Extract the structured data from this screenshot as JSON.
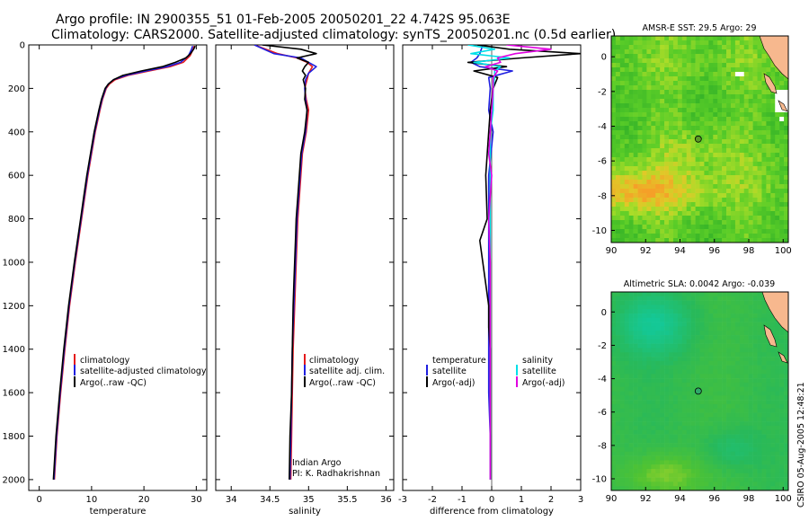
{
  "header": {
    "title_line1": "Argo profile: IN 2900355_51 01-Feb-2005 20050201_22 4.742S 95.063E",
    "title_line2": "Climatology: CARS2000. Satellite-adjusted climatology: synTS_20050201.nc (0.5d earlier)"
  },
  "colors": {
    "climatology": "#e41a1c",
    "satellite": "#1f1fe0",
    "argo": "#000000",
    "sat_salinity": "#00e0e8",
    "argo_adj_salinity": "#e000e0",
    "land": "#f7b88e",
    "gap": "#ffffff"
  },
  "chart_data": [
    {
      "type": "line",
      "id": "temperature",
      "xlabel": "temperature",
      "ylabel": "",
      "xlim": [
        -2,
        32
      ],
      "ylim": [
        2050,
        0
      ],
      "xticks": [
        0,
        10,
        20,
        30
      ],
      "yticks": [
        0,
        200,
        400,
        600,
        800,
        1000,
        1200,
        1400,
        1600,
        1800,
        2000
      ],
      "legend": [
        "climatology",
        "satellite-adjusted climatology",
        "Argo(..raw -QC)"
      ],
      "legend_position": "lower-left",
      "series": [
        {
          "name": "climatology",
          "depth": [
            5,
            20,
            50,
            80,
            100,
            120,
            140,
            160,
            180,
            200,
            250,
            300,
            400,
            500,
            600,
            700,
            800,
            1000,
            1200,
            1400,
            1600,
            1800,
            2000
          ],
          "values": [
            29.6,
            29.4,
            28.8,
            27.5,
            25,
            21,
            17,
            14.5,
            13.4,
            12.8,
            12.1,
            11.6,
            10.7,
            10.0,
            9.3,
            8.7,
            8.1,
            6.9,
            5.8,
            4.9,
            4.1,
            3.4,
            2.9
          ]
        },
        {
          "name": "satellite-adjusted climatology",
          "depth": [
            5,
            20,
            50,
            80,
            100,
            120,
            140,
            160,
            180,
            200,
            250,
            300,
            400,
            500,
            600,
            700,
            800,
            1000,
            1200,
            1400,
            1600,
            1800,
            2000
          ],
          "values": [
            29.3,
            29.1,
            28.5,
            27.0,
            24.4,
            20.4,
            16.6,
            14.2,
            13.2,
            12.7,
            12.0,
            11.5,
            10.6,
            9.9,
            9.2,
            8.6,
            8.0,
            6.8,
            5.7,
            4.8,
            4.0,
            3.3,
            2.8
          ]
        },
        {
          "name": "Argo(..raw -QC)",
          "depth": [
            5,
            20,
            40,
            60,
            80,
            100,
            120,
            140,
            160,
            180,
            200,
            250,
            300,
            400,
            500,
            600,
            700,
            800,
            1000,
            1200,
            1400,
            1600,
            1800,
            2000
          ],
          "values": [
            29.8,
            29.5,
            28.9,
            28.0,
            26.0,
            23.5,
            19.5,
            16,
            14.2,
            13.2,
            12.6,
            11.9,
            11.4,
            10.5,
            9.8,
            9.1,
            8.5,
            7.9,
            6.7,
            5.6,
            4.7,
            3.9,
            3.2,
            2.7
          ]
        }
      ]
    },
    {
      "type": "line",
      "id": "salinity",
      "xlabel": "salinity",
      "xlim": [
        33.8,
        36.1
      ],
      "ylim": [
        2050,
        0
      ],
      "xticks": [
        34,
        34.5,
        35,
        35.5,
        36
      ],
      "legend": [
        "climatology",
        "satellite adj. clim.",
        "Argo(..raw -QC)"
      ],
      "legend_position": "lower-right",
      "annotation": [
        "Indian Argo",
        "PI: K. Radhakrishnan"
      ],
      "series": [
        {
          "name": "climatology",
          "depth": [
            0,
            40,
            60,
            80,
            100,
            130,
            160,
            200,
            250,
            300,
            400,
            500,
            600,
            700,
            800,
            1000,
            1200,
            1400,
            1600,
            1800,
            2000
          ],
          "values": [
            34.3,
            34.6,
            34.85,
            34.98,
            35.05,
            35.0,
            34.98,
            34.95,
            34.97,
            35.0,
            34.97,
            34.92,
            34.9,
            34.88,
            34.86,
            34.84,
            34.82,
            34.8,
            34.79,
            34.78,
            34.77
          ]
        },
        {
          "name": "satellite adj. clim.",
          "depth": [
            0,
            40,
            60,
            80,
            100,
            130,
            160,
            200,
            250,
            300,
            400,
            500,
            600,
            700,
            800,
            1000,
            1200,
            1400,
            1600,
            1800,
            2000
          ],
          "values": [
            34.3,
            34.55,
            34.9,
            35.0,
            35.1,
            35.0,
            34.96,
            34.95,
            34.96,
            34.98,
            34.96,
            34.91,
            34.89,
            34.87,
            34.85,
            34.83,
            34.81,
            34.79,
            34.78,
            34.77,
            34.76
          ]
        },
        {
          "name": "Argo(..raw -QC)",
          "depth": [
            0,
            20,
            40,
            60,
            80,
            100,
            120,
            140,
            160,
            200,
            250,
            300,
            400,
            500,
            600,
            700,
            800,
            900,
            1000,
            1100,
            1200,
            1400,
            1600,
            1800,
            2000
          ],
          "values": [
            34.4,
            34.9,
            35.1,
            34.85,
            35.0,
            34.95,
            34.92,
            34.96,
            34.93,
            34.96,
            34.95,
            34.98,
            34.95,
            34.9,
            34.88,
            34.86,
            34.84,
            34.83,
            34.82,
            34.81,
            34.8,
            34.79,
            34.78,
            34.76,
            34.75
          ]
        }
      ]
    },
    {
      "type": "line",
      "id": "difference",
      "xlabel": "difference from climatology",
      "xlim": [
        -3,
        3
      ],
      "ylim": [
        2050,
        0
      ],
      "xticks": [
        -3,
        -2,
        -1,
        0,
        1,
        2,
        3
      ],
      "legend": [
        "temperature",
        "satellite",
        "Argo(-adj)",
        "salinity",
        "satellite",
        "Argo(-adj)"
      ],
      "legend_position": "lower-center",
      "series": [
        {
          "name": "temperature satellite",
          "depth": [
            0,
            40,
            60,
            80,
            100,
            120,
            150,
            200,
            300,
            400,
            600,
            800,
            1000,
            1200,
            1400,
            1600,
            1800,
            2000
          ],
          "values": [
            -0.3,
            -0.4,
            -0.5,
            -0.7,
            -0.4,
            0.7,
            -0.1,
            -0.05,
            -0.1,
            0.05,
            -0.1,
            -0.1,
            -0.1,
            -0.1,
            -0.1,
            -0.1,
            -0.05,
            -0.05
          ]
        },
        {
          "name": "temperature Argo(-adj)",
          "depth": [
            0,
            20,
            40,
            60,
            80,
            100,
            120,
            150,
            200,
            300,
            400,
            600,
            800,
            900,
            1000,
            1100,
            1200,
            1300,
            1400,
            1600,
            1800,
            2000
          ],
          "values": [
            -0.5,
            0.6,
            3.0,
            1.0,
            -0.8,
            0.5,
            -0.6,
            0.2,
            0.05,
            -0.05,
            -0.1,
            -0.2,
            -0.15,
            -0.4,
            -0.3,
            -0.2,
            -0.1,
            -0.1,
            -0.05,
            -0.05,
            -0.05,
            -0.05
          ]
        },
        {
          "name": "salinity satellite",
          "depth": [
            0,
            20,
            40,
            60,
            80,
            100,
            120,
            150,
            200,
            300,
            400,
            600,
            800,
            1000,
            1200,
            1400,
            1600,
            1800,
            2000
          ],
          "values": [
            -0.8,
            0.1,
            -0.7,
            0.6,
            -0.6,
            0.3,
            0.1,
            0.1,
            0.05,
            0.05,
            -0.05,
            -0.05,
            -0.05,
            -0.05,
            -0.05,
            -0.05,
            -0.05,
            -0.05,
            -0.05
          ]
        },
        {
          "name": "salinity Argo(-adj)",
          "depth": [
            0,
            20,
            40,
            60,
            80,
            100,
            120,
            150,
            200,
            300,
            400,
            500,
            600,
            800,
            1000,
            1200,
            1400,
            1600,
            1800,
            2000
          ],
          "values": [
            0.5,
            2.0,
            0.8,
            0.2,
            0.3,
            -0.2,
            0.2,
            0.05,
            0.05,
            0.0,
            -0.05,
            -0.1,
            0.0,
            -0.1,
            -0.05,
            -0.05,
            -0.05,
            -0.05,
            -0.05,
            -0.05
          ]
        }
      ]
    },
    {
      "type": "heatmap",
      "id": "sst_map",
      "title": "AMSR-E SST: 29.5 Argo: 29",
      "xlim": [
        90,
        100.3
      ],
      "ylim": [
        -10.7,
        1.2
      ],
      "xticks": [
        90,
        92,
        94,
        96,
        98,
        100
      ],
      "yticks": [
        0,
        -2,
        -4,
        -6,
        -8,
        -10
      ],
      "marker": {
        "lon": 95.063,
        "lat": -4.742
      }
    },
    {
      "type": "heatmap",
      "id": "sla_map",
      "title": "Altimetric SLA: 0.0042 Argo: -0.039",
      "xlim": [
        90,
        100.3
      ],
      "ylim": [
        -10.7,
        1.2
      ],
      "xticks": [
        90,
        92,
        94,
        96,
        98,
        100
      ],
      "yticks": [
        0,
        -2,
        -4,
        -6,
        -8,
        -10
      ],
      "marker": {
        "lon": 95.063,
        "lat": -4.742
      }
    }
  ],
  "footer": {
    "credit": "CSIRO 05-Aug-2005 12:48:21"
  }
}
